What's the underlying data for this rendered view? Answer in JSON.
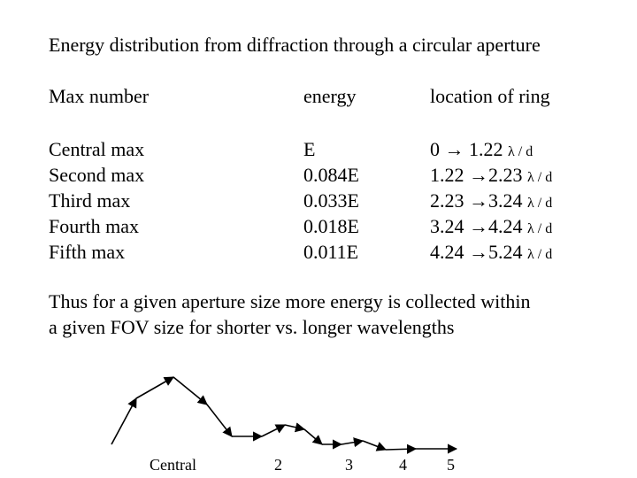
{
  "title": "Energy distribution from diffraction through a circular aperture",
  "table": {
    "headers": [
      "Max number",
      "energy",
      "location of ring"
    ],
    "rows": [
      {
        "name": "Central max",
        "energy": "E",
        "from": "0",
        "to": "1.22"
      },
      {
        "name": "Second max",
        "energy": "0.084E",
        "from": "1.22",
        "to": "2.23"
      },
      {
        "name": "Third max",
        "energy": "0.033E",
        "from": "2.23",
        "to": "3.24"
      },
      {
        "name": "Fourth max",
        "energy": "0.018E",
        "from": "3.24",
        "to": "4.24"
      },
      {
        "name": "Fifth max",
        "energy": "0.011E",
        "from": "4.24",
        "to": "5.24"
      }
    ],
    "arrow_symbol": "→",
    "unit": "λ / d"
  },
  "conclusion": [
    "Thus for a given aperture size more energy is collected within",
    "a given FOV size for shorter vs. longer wavelengths"
  ],
  "sketch": {
    "labels": [
      "Central",
      "2",
      "3",
      "4",
      "5"
    ],
    "stroke_color": "#000000"
  }
}
